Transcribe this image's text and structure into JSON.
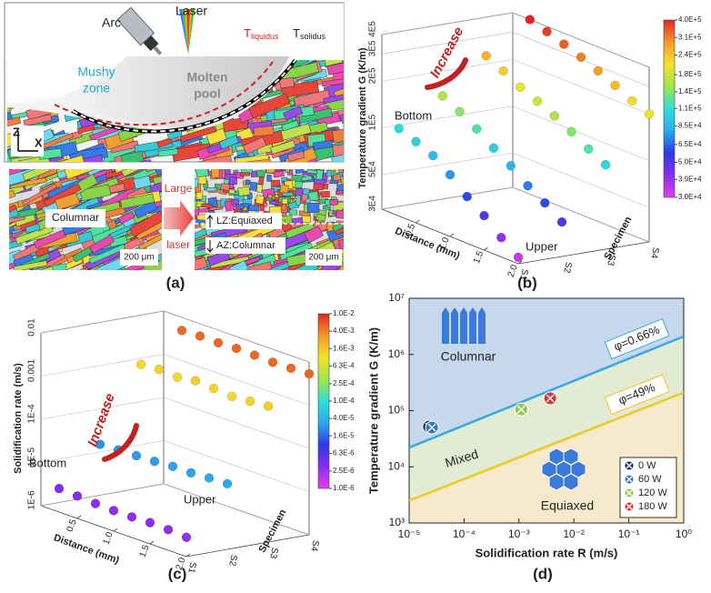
{
  "panel_a": {
    "arc": "Arc",
    "laser": "Laser",
    "t_liquidus": {
      "main": "T",
      "sub": "liquidus"
    },
    "t_solidus": {
      "main": "T",
      "sub": "solidus"
    },
    "mushy_zone": [
      "Mushy",
      "zone"
    ],
    "molten_pool": [
      "Molten",
      "pool"
    ],
    "axis_z": "Z",
    "axis_x": "X",
    "columnar": "Columnar",
    "scale_left": "200 μm",
    "large_laser": [
      "Large",
      "laser"
    ],
    "lz": "LZ:Equiaxed",
    "az": "AZ:Columnar",
    "scale_right": "200 μm",
    "caption": "(a)"
  },
  "chart_data": [
    {
      "type": "scatter3d",
      "caption": "(b)",
      "z_label": "Temperature gradient G (K/m)",
      "x_label": "Distance (mm)",
      "y_label": "Specimen",
      "annotation_increase": "Increase",
      "annotation_bottom": "Bottom",
      "annotation_upper": "Upper",
      "categories": [
        "S1",
        "S2",
        "S3",
        "S4"
      ],
      "x": [
        0.25,
        0.5,
        0.75,
        1.0,
        1.25,
        1.5,
        1.75,
        2.0
      ],
      "series": [
        {
          "values": [
            110000,
            100000,
            90000,
            75000,
            60000,
            50000,
            40000,
            33000
          ]
        },
        {
          "values": [
            160000,
            140000,
            120000,
            100000,
            85000,
            70000,
            60000,
            50000
          ]
        },
        {
          "values": [
            260000,
            230000,
            200000,
            180000,
            160000,
            140000,
            120000,
            105000
          ]
        },
        {
          "values": [
            400000,
            370000,
            340000,
            310000,
            280000,
            250000,
            220000,
            200000
          ]
        }
      ],
      "xlim": [
        0,
        2
      ],
      "xticks": [
        0.5,
        {
          "value": 1,
          "label": "1.0"
        },
        1.5,
        {
          "value": 2,
          "label": "2.0"
        }
      ],
      "zlim": [
        30000,
        400000
      ],
      "log_z": true,
      "zticks": [
        {
          "value": 30000,
          "label": "3E4"
        },
        {
          "value": 50000,
          "label": "5E4"
        },
        {
          "value": 100000,
          "label": "1E5"
        },
        {
          "value": 200000,
          "label": "2E5"
        },
        {
          "value": 300000,
          "label": "3E5"
        },
        {
          "value": 400000,
          "label": "4E5"
        }
      ],
      "colorbar": {
        "lim": [
          30000,
          400000
        ],
        "colors": [
          "#e43ce8",
          "#8a2ef0",
          "#2c3ae8",
          "#2ca8f0",
          "#2ce0d8",
          "#9ee84a",
          "#f4e42a",
          "#f59a2a",
          "#e42420"
        ],
        "ticks": [
          {
            "value": 400000,
            "label": "4.0E+5"
          },
          {
            "value": 310000,
            "label": "3.1E+5"
          },
          {
            "value": 240000,
            "label": "2.4E+5"
          },
          {
            "value": 180000,
            "label": "1.8E+5"
          },
          {
            "value": 140000,
            "label": "1.4E+5"
          },
          {
            "value": 110000,
            "label": "1.1E+5"
          },
          {
            "value": 85000,
            "label": "8.5E+4"
          },
          {
            "value": 65000,
            "label": "6.5E+4"
          },
          {
            "value": 50000,
            "label": "5.0E+4"
          },
          {
            "value": 39000,
            "label": "3.9E+4"
          },
          {
            "value": 30000,
            "label": "3.0E+4"
          }
        ]
      }
    },
    {
      "type": "scatter3d",
      "caption": "(c)",
      "z_label": "Solidification rate (m/s)",
      "x_label": "Distance (mm)",
      "y_label": "Specimen",
      "annotation_increase": "Increase",
      "annotation_bottom": "Bottom",
      "annotation_upper": "Upper",
      "categories": [
        "S1",
        "S2",
        "S3",
        "S4"
      ],
      "x": [
        0.25,
        0.5,
        0.75,
        1.0,
        1.25,
        1.5,
        1.75,
        2.0
      ],
      "series": [
        {
          "values": [
            3.5e-06,
            3.3e-06,
            3.1e-06,
            3e-06,
            3e-06,
            3.1e-06,
            3e-06,
            2.8e-06
          ]
        },
        {
          "values": [
            2.5e-05,
            2.6e-05,
            2.7e-05,
            2.8e-05,
            3e-05,
            3e-05,
            3.2e-05,
            3.3e-05
          ]
        },
        {
          "values": [
            0.0012,
            0.0013,
            0.0012,
            0.0014,
            0.0013,
            0.0012,
            0.0013,
            0.0014
          ]
        },
        {
          "values": [
            0.005,
            0.0052,
            0.0051,
            0.0053,
            0.0052,
            0.005,
            0.0051,
            0.0053
          ]
        }
      ],
      "xlim": [
        0,
        2
      ],
      "xticks": [
        0.5,
        {
          "value": 1,
          "label": "1.0"
        },
        1.5,
        {
          "value": 2,
          "label": "2.0"
        }
      ],
      "zlim": [
        1e-06,
        0.01
      ],
      "log_z": true,
      "zticks": [
        {
          "value": 1e-06,
          "label": "1E-6"
        },
        {
          "value": 1e-05,
          "label": "1E-5"
        },
        {
          "value": 0.0001,
          "label": "1E-4"
        },
        0.001,
        0.01
      ],
      "colorbar": {
        "lim": [
          1e-06,
          0.01
        ],
        "colors": [
          "#e43ce8",
          "#8a2ef0",
          "#2c3ae8",
          "#2ca8f0",
          "#2ce0d8",
          "#9ee84a",
          "#f4e42a",
          "#f59a2a",
          "#e42420"
        ],
        "ticks": [
          {
            "value": 0.01,
            "label": "1.0E-2"
          },
          {
            "value": 0.004,
            "label": "4.0E-3"
          },
          {
            "value": 0.0016,
            "label": "1.6E-3"
          },
          {
            "value": 0.00063,
            "label": "6.3E-4"
          },
          {
            "value": 0.00025,
            "label": "2.5E-4"
          },
          {
            "value": 0.0001,
            "label": "1.0E-4"
          },
          {
            "value": 4e-05,
            "label": "4.0E-5"
          },
          {
            "value": 1.6e-05,
            "label": "1.6E-5"
          },
          {
            "value": 6.3e-06,
            "label": "6.3E-6"
          },
          {
            "value": 2.5e-06,
            "label": "2.5E-6"
          },
          {
            "value": 1e-06,
            "label": "1.0E-6"
          }
        ]
      }
    },
    {
      "type": "scatter",
      "caption": "(d)",
      "x_label": "Solidification rate R (m/s)",
      "y_label": "Temperature gradient G (K/m)",
      "xlim": [
        1e-05,
        1
      ],
      "ylim": [
        1000,
        10000000
      ],
      "log_x": true,
      "log_y": true,
      "xticks": [
        {
          "value": 1e-05,
          "label": "10⁻⁵"
        },
        {
          "value": 0.0001,
          "label": "10⁻⁴"
        },
        {
          "value": 0.001,
          "label": "10⁻³"
        },
        {
          "value": 0.01,
          "label": "10⁻²"
        },
        {
          "value": 0.1,
          "label": "10⁻¹"
        },
        {
          "value": 1,
          "label": "10⁰"
        }
      ],
      "yticks": [
        {
          "value": 1000,
          "label": "10³"
        },
        {
          "value": 10000,
          "label": "10⁴"
        },
        {
          "value": 100000,
          "label": "10⁵"
        },
        {
          "value": 1000000,
          "label": "10⁶"
        },
        {
          "value": 10000000,
          "label": "10⁷"
        }
      ],
      "series": [
        {
          "name": "0 W",
          "color": "#1c2a5c",
          "x": [
            2.3e-05
          ],
          "values": [
            52000
          ]
        },
        {
          "name": "60 W",
          "color": "#2a7cb4",
          "x": [
            2.6e-05
          ],
          "values": [
            50000
          ]
        },
        {
          "name": "120 W",
          "color": "#8ec84c",
          "x": [
            0.0011
          ],
          "values": [
            105000
          ]
        },
        {
          "name": "180 W",
          "color": "#e03232",
          "x": [
            0.0037
          ],
          "values": [
            166000
          ]
        }
      ],
      "lines": [
        {
          "label": "φ=0.66%",
          "color": "#3aa8e0",
          "x": [
            1e-05,
            1
          ],
          "values": [
            22000,
            2100000
          ]
        },
        {
          "label": "φ=49%",
          "color": "#f0c820",
          "x": [
            1e-05,
            1
          ],
          "values": [
            2500,
            210000
          ]
        }
      ],
      "region_labels": {
        "columnar": "Columnar",
        "mixed": "Mixed",
        "equiaxed": "Equiaxed"
      },
      "legend": "lower right"
    }
  ]
}
